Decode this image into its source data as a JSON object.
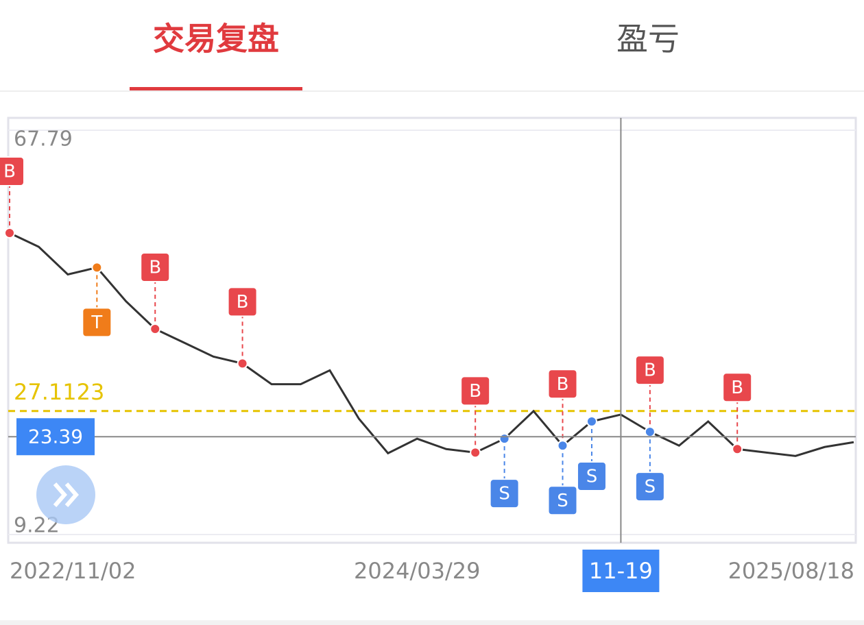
{
  "tabs": [
    {
      "label": "交易复盘",
      "active": true
    },
    {
      "label": "盈亏",
      "active": false
    }
  ],
  "chart_data": {
    "type": "line",
    "categories": [
      "2022/11/02",
      null,
      null,
      null,
      null,
      null,
      null,
      null,
      null,
      null,
      null,
      null,
      null,
      null,
      "2024/03/29",
      null,
      null,
      null,
      null,
      null,
      null,
      "11-19",
      null,
      null,
      null,
      null,
      null,
      null,
      null,
      "2025/08/18"
    ],
    "values": [
      52.9,
      50.9,
      46.9,
      47.9,
      43,
      39,
      37,
      35,
      34,
      31,
      31,
      33,
      26,
      21,
      23.1,
      21.6,
      21.1,
      23.1,
      27.1,
      22.1,
      25.6,
      26.6,
      24.1,
      22.1,
      25.6,
      21.6,
      21.1,
      20.6,
      21.9,
      22.6
    ],
    "color": "#333333",
    "ylim": [
      9.22,
      67.79
    ],
    "yticks": [
      9.22,
      67.79
    ],
    "signals": [
      {
        "label": "B",
        "color": "#e8474c",
        "placement": "above",
        "values": [
          52.9,
          null,
          null,
          null,
          null,
          39,
          null,
          null,
          34,
          null,
          null,
          null,
          null,
          null,
          null,
          null,
          21.1,
          null,
          null,
          22.1,
          null,
          null,
          24.1,
          null,
          null,
          21.6,
          null,
          null,
          null,
          null
        ]
      },
      {
        "label": "S",
        "color": "#4a86e8",
        "placement": "below",
        "values": [
          null,
          null,
          null,
          null,
          null,
          null,
          null,
          null,
          null,
          null,
          null,
          null,
          null,
          null,
          null,
          null,
          null,
          23.1,
          null,
          22.1,
          25.6,
          null,
          24.1,
          null,
          null,
          null,
          null,
          null,
          null,
          null
        ]
      },
      {
        "label": "T",
        "color": "#f07c1a",
        "placement": "below",
        "values": [
          null,
          null,
          null,
          47.9,
          null,
          null,
          null,
          null,
          null,
          null,
          null,
          null,
          null,
          null,
          null,
          null,
          null,
          null,
          null,
          null,
          null,
          null,
          null,
          null,
          null,
          null,
          null,
          null,
          null,
          null
        ]
      }
    ],
    "reference_line": {
      "value": 27.1123,
      "color": "#e6c300"
    },
    "crosshair": {
      "x": "11-19",
      "y": 23.39
    }
  }
}
